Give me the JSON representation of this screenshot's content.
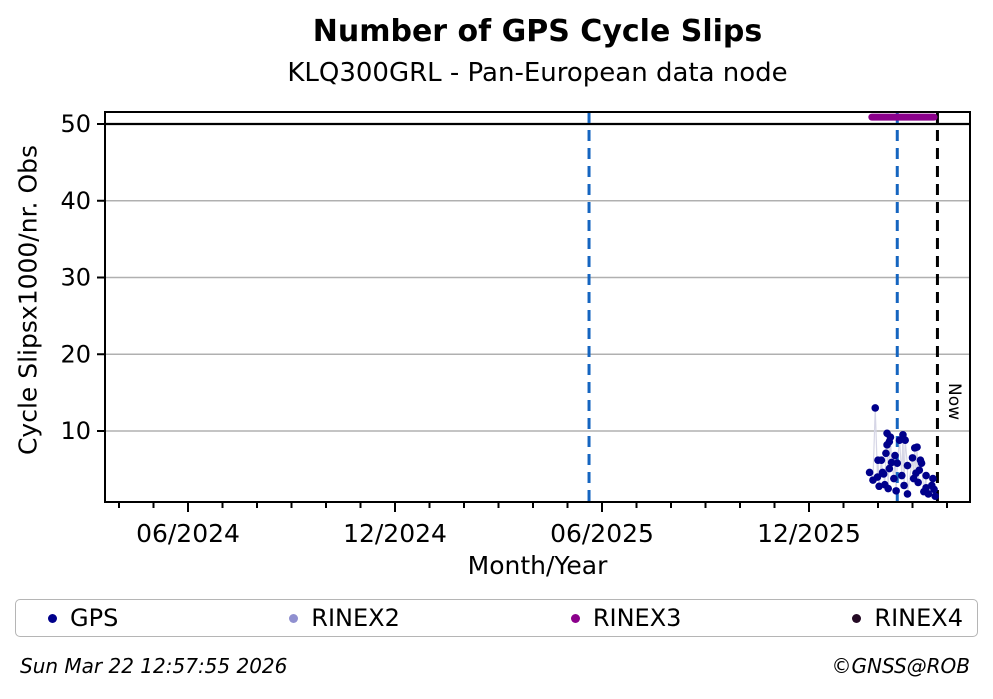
{
  "header": {
    "title": "Number of GPS Cycle Slips",
    "subtitle": "KLQ300GRL - Pan-European data node"
  },
  "footer": {
    "timestamp": "Sun Mar 22 12:57:55 2026",
    "credit": "©GNSS@ROB"
  },
  "chart_data": {
    "type": "scatter",
    "title": "Number of GPS Cycle Slips",
    "subtitle": "KLQ300GRL - Pan-European data node",
    "xlabel": "Month/Year",
    "ylabel": "Cycle Slipsx1000/nr. Obs",
    "grid": true,
    "ylim": [
      0.3,
      51.6
    ],
    "xlim": [
      "2024-03-22",
      "2026-04-22"
    ],
    "y_ticks": [
      10,
      20,
      30,
      40,
      50
    ],
    "x_major_ticks": [
      {
        "date": "2024-06-01",
        "label": "06/2024"
      },
      {
        "date": "2024-12-01",
        "label": "12/2024"
      },
      {
        "date": "2025-06-01",
        "label": "06/2025"
      },
      {
        "date": "2025-12-01",
        "label": "12/2025"
      }
    ],
    "threshold_line": {
      "value": 50,
      "color": "#000000"
    },
    "series": [
      {
        "name": "GPS",
        "color": "#00008B",
        "connector_color": "#d6d6e6",
        "points": [
          [
            "2026-01-24",
            4.6
          ],
          [
            "2026-01-27",
            3.6
          ],
          [
            "2026-01-29",
            13.0
          ],
          [
            "2026-01-31",
            4.0
          ],
          [
            "2026-02-01",
            6.2
          ],
          [
            "2026-02-02",
            2.8
          ],
          [
            "2026-02-04",
            6.2
          ],
          [
            "2026-02-05",
            4.6
          ],
          [
            "2026-02-06",
            4.4
          ],
          [
            "2026-02-07",
            3.0
          ],
          [
            "2026-02-08",
            7.1
          ],
          [
            "2026-02-09",
            9.7
          ],
          [
            "2026-02-09",
            8.2
          ],
          [
            "2026-02-10",
            2.5
          ],
          [
            "2026-02-11",
            8.6
          ],
          [
            "2026-02-11",
            5.1
          ],
          [
            "2026-02-12",
            9.2
          ],
          [
            "2026-02-13",
            5.9
          ],
          [
            "2026-02-15",
            3.8
          ],
          [
            "2026-02-16",
            6.8
          ],
          [
            "2026-02-17",
            2.2
          ],
          [
            "2026-02-18",
            5.8
          ],
          [
            "2026-02-20",
            8.8
          ],
          [
            "2026-02-22",
            4.2
          ],
          [
            "2026-02-23",
            9.5
          ],
          [
            "2026-02-24",
            2.9
          ],
          [
            "2026-02-25",
            8.8
          ],
          [
            "2026-02-27",
            5.5
          ],
          [
            "2026-02-27",
            1.8
          ],
          [
            "2026-03-01",
            6.5
          ],
          [
            "2026-03-02",
            3.8
          ],
          [
            "2026-03-03",
            7.8
          ],
          [
            "2026-03-04",
            4.5
          ],
          [
            "2026-03-05",
            7.9
          ],
          [
            "2026-03-06",
            3.3
          ],
          [
            "2026-03-07",
            4.9
          ],
          [
            "2026-03-08",
            6.2
          ],
          [
            "2026-03-09",
            5.8
          ],
          [
            "2026-03-11",
            2.1
          ],
          [
            "2026-03-13",
            4.2
          ],
          [
            "2026-03-13",
            2.6
          ],
          [
            "2026-03-15",
            1.8
          ],
          [
            "2026-03-18",
            2.9
          ],
          [
            "2026-03-19",
            3.8
          ],
          [
            "2026-03-20",
            2.4
          ],
          [
            "2026-03-21",
            1.5
          ]
        ]
      },
      {
        "name": "RINEX2",
        "color": "#9090D0",
        "points": []
      },
      {
        "name": "RINEX3",
        "color": "#8B008B",
        "band": {
          "start": "2026-01-26",
          "end": "2026-03-20",
          "value": 50.9
        }
      },
      {
        "name": "RINEX4",
        "color": "#240A24",
        "points": []
      }
    ],
    "annotations": {
      "event_lines": [
        {
          "date": "2025-05-20",
          "color": "#1565C0",
          "style": "dashed"
        },
        {
          "date": "2026-02-18",
          "color": "#1565C0",
          "style": "dashed"
        }
      ],
      "now_line": {
        "date": "2026-03-23",
        "label": "Now",
        "color": "#000000",
        "style": "dashed"
      }
    }
  },
  "legend": {
    "items": [
      {
        "label": "GPS",
        "color": "#00008B"
      },
      {
        "label": "RINEX2",
        "color": "#9090D0"
      },
      {
        "label": "RINEX3",
        "color": "#8B008B"
      },
      {
        "label": "RINEX4",
        "color": "#240A24"
      }
    ]
  }
}
